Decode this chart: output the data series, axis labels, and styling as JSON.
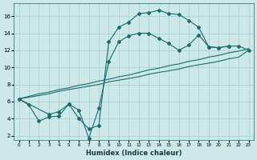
{
  "xlabel": "Humidex (Indice chaleur)",
  "xlim": [
    -0.5,
    23.5
  ],
  "ylim": [
    1.5,
    17.5
  ],
  "xticks": [
    0,
    1,
    2,
    3,
    4,
    5,
    6,
    7,
    8,
    9,
    10,
    11,
    12,
    13,
    14,
    15,
    16,
    17,
    18,
    19,
    20,
    21,
    22,
    23
  ],
  "yticks": [
    2,
    4,
    6,
    8,
    10,
    12,
    14,
    16
  ],
  "background_color": "#cce8e8",
  "grid_color": "#aacccc",
  "line_color": "#1a6b6b",
  "curve1_x": [
    0,
    1,
    2,
    3,
    4,
    5,
    6,
    7,
    8,
    9,
    10,
    11,
    12,
    13,
    14,
    15,
    16,
    17,
    18,
    19,
    20,
    21
  ],
  "curve1_y": [
    6.3,
    5.6,
    3.7,
    4.2,
    4.3,
    5.7,
    4.0,
    2.8,
    3.2,
    13.0,
    14.7,
    15.3,
    16.3,
    16.4,
    16.7,
    16.3,
    16.2,
    15.5,
    14.7,
    12.4,
    12.3,
    12.5
  ],
  "curve2_x": [
    0,
    1,
    2,
    3,
    4,
    5,
    6,
    7,
    8,
    9,
    10,
    11,
    12,
    13,
    14,
    15,
    16,
    17,
    18,
    19,
    20,
    21,
    22,
    23
  ],
  "curve2_y": [
    6.3,
    6.6,
    6.9,
    7.1,
    7.4,
    7.6,
    7.9,
    8.1,
    8.4,
    8.6,
    8.9,
    9.1,
    9.4,
    9.7,
    9.9,
    10.2,
    10.4,
    10.7,
    10.9,
    11.2,
    11.4,
    11.7,
    11.9,
    12.2
  ],
  "curve3_x": [
    0,
    1,
    2,
    3,
    4,
    5,
    6,
    7,
    8,
    9,
    10,
    11,
    12,
    13,
    14,
    15,
    16,
    17,
    18,
    19,
    20,
    21,
    22,
    23
  ],
  "curve3_y": [
    6.3,
    6.5,
    6.7,
    6.9,
    7.2,
    7.4,
    7.6,
    7.8,
    8.0,
    8.3,
    8.5,
    8.7,
    8.9,
    9.2,
    9.4,
    9.6,
    9.8,
    10.1,
    10.3,
    10.5,
    10.7,
    11.0,
    11.2,
    12.0
  ],
  "curve4_x": [
    0,
    3,
    4,
    5,
    6,
    7,
    8,
    9,
    10,
    11,
    12,
    13,
    14,
    15,
    16,
    17,
    18,
    19,
    20,
    21,
    22,
    23
  ],
  "curve4_y": [
    6.3,
    4.5,
    4.8,
    5.7,
    5.0,
    1.7,
    5.2,
    10.7,
    13.0,
    13.7,
    14.0,
    14.0,
    13.4,
    12.8,
    12.0,
    12.6,
    13.8,
    12.4,
    12.3,
    12.5,
    12.5,
    12.0
  ]
}
